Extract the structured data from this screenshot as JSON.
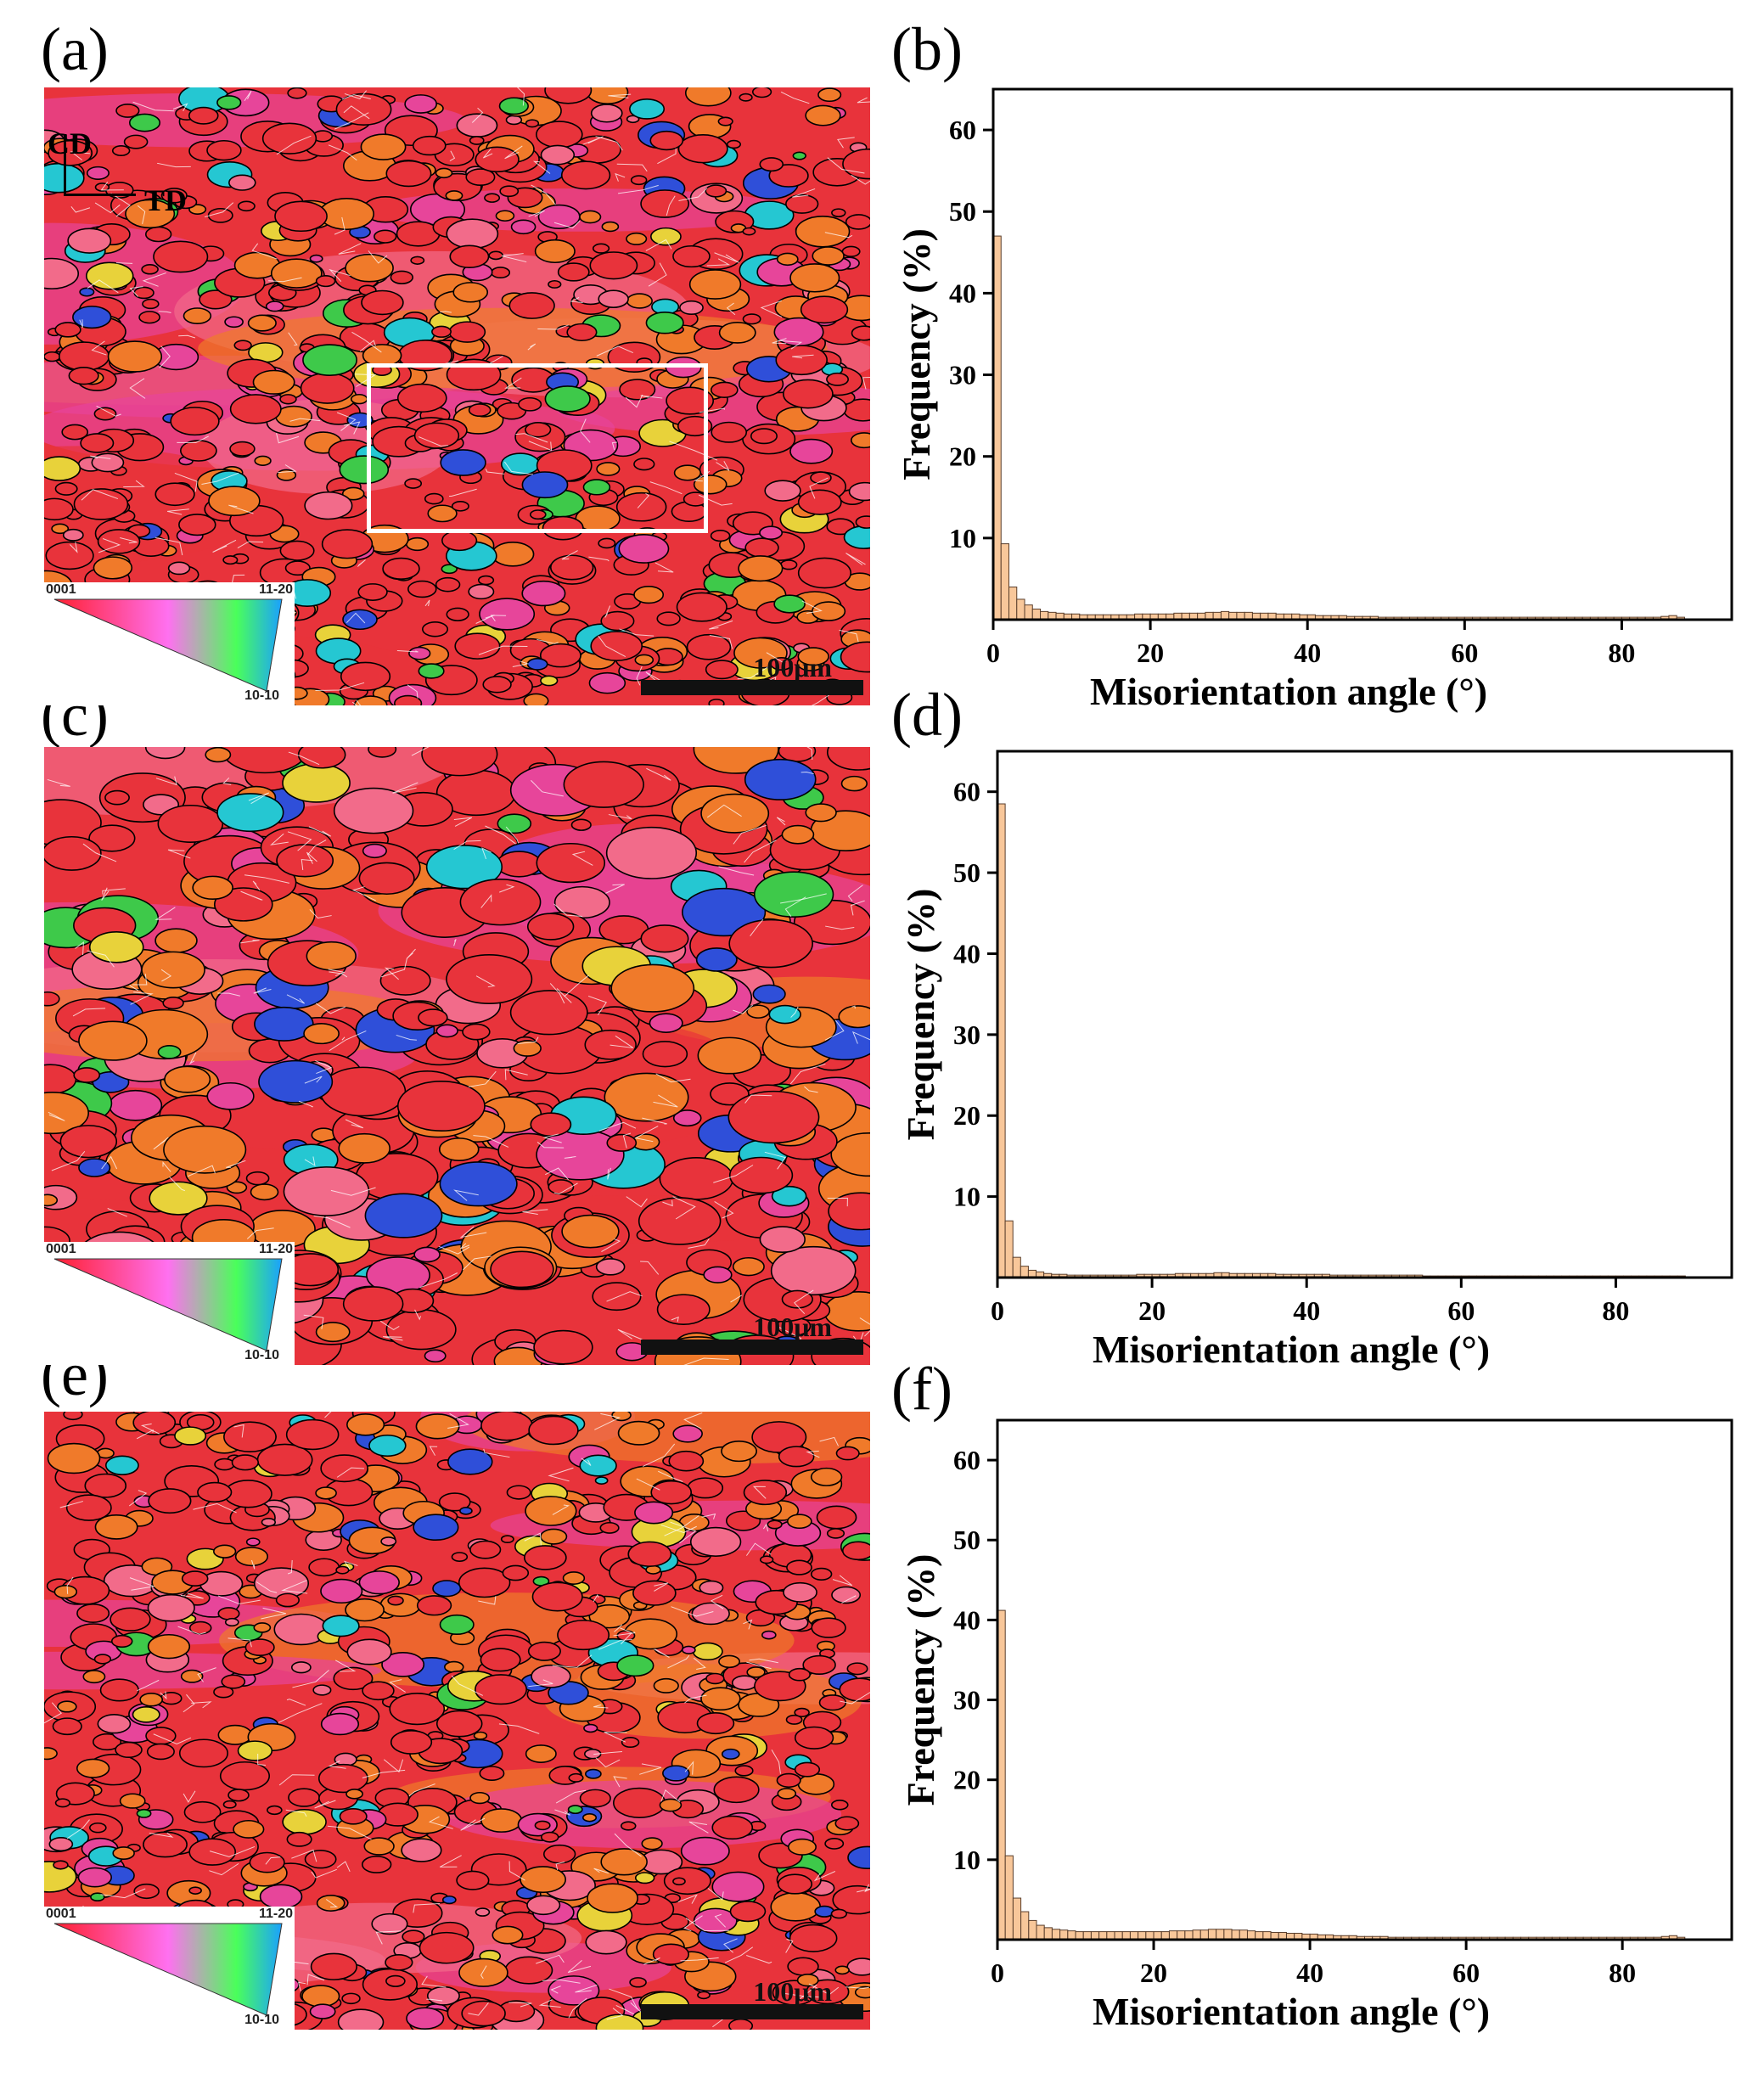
{
  "panels": {
    "a": "(a)",
    "b": "(b)",
    "c": "(c)",
    "d": "(d)",
    "e": "(e)",
    "f": "(f)"
  },
  "maps": {
    "axes": {
      "cd": "CD",
      "td": "TD"
    },
    "legend": {
      "top_left": "0001",
      "top_right": "11-20",
      "bottom_right": "10-10"
    },
    "scale_label": "100μm",
    "colors": {
      "base": "#e8333b",
      "orange": "#f07a2a",
      "magenta": "#e7459a",
      "pink": "#f26b8a",
      "yellow": "#e8d23a",
      "green": "#3ec94a",
      "cyan": "#25c7d2",
      "blue": "#2f4fd9",
      "boundary": "#000000",
      "subboundary": "#ffffff",
      "box": "#ffffff"
    }
  },
  "chart_data": [
    {
      "type": "bar",
      "panel": "(b)",
      "xlabel": "Misorientation  angle (°)",
      "ylabel": "Frequency (%)",
      "xlim": [
        0,
        94
      ],
      "ylim": [
        0,
        65
      ],
      "xticks": [
        0,
        20,
        40,
        60,
        80
      ],
      "yticks": [
        10,
        20,
        30,
        40,
        50,
        60
      ],
      "bin_width": 1,
      "x": [
        1,
        2,
        3,
        4,
        5,
        6,
        7,
        8,
        9,
        10,
        11,
        12,
        13,
        14,
        15,
        16,
        17,
        18,
        19,
        20,
        21,
        22,
        23,
        24,
        25,
        26,
        27,
        28,
        29,
        30,
        31,
        32,
        33,
        34,
        35,
        36,
        37,
        38,
        39,
        40,
        41,
        42,
        43,
        44,
        45,
        46,
        47,
        48,
        49,
        50,
        51,
        52,
        53,
        54,
        55,
        56,
        57,
        58,
        59,
        60,
        61,
        62,
        63,
        64,
        65,
        66,
        67,
        68,
        69,
        70,
        71,
        72,
        73,
        74,
        75,
        76,
        77,
        78,
        79,
        80,
        81,
        82,
        83,
        84,
        85,
        86,
        87,
        88
      ],
      "values": [
        47,
        9.3,
        4,
        2.5,
        1.8,
        1.3,
        1.0,
        0.9,
        0.8,
        0.7,
        0.7,
        0.6,
        0.6,
        0.6,
        0.6,
        0.6,
        0.6,
        0.6,
        0.7,
        0.7,
        0.7,
        0.7,
        0.7,
        0.8,
        0.8,
        0.8,
        0.8,
        0.9,
        0.9,
        1.0,
        0.9,
        0.9,
        0.9,
        0.8,
        0.8,
        0.8,
        0.7,
        0.7,
        0.7,
        0.6,
        0.6,
        0.5,
        0.5,
        0.5,
        0.5,
        0.4,
        0.4,
        0.4,
        0.4,
        0.3,
        0.3,
        0.3,
        0.3,
        0.3,
        0.3,
        0.3,
        0.3,
        0.3,
        0.3,
        0.3,
        0.3,
        0.3,
        0.3,
        0.3,
        0.3,
        0.3,
        0.3,
        0.3,
        0.3,
        0.3,
        0.3,
        0.3,
        0.3,
        0.3,
        0.3,
        0.3,
        0.3,
        0.3,
        0.3,
        0.3,
        0.3,
        0.3,
        0.3,
        0.3,
        0.3,
        0.4,
        0.5,
        0.3
      ],
      "bar_color": "#f8c79a",
      "edge_color": "#5a3e2b"
    },
    {
      "type": "bar",
      "panel": "(d)",
      "xlabel": "Misorientation  angle (°)",
      "ylabel": "Frequency (%)",
      "xlim": [
        0,
        95
      ],
      "ylim": [
        0,
        65
      ],
      "xticks": [
        0,
        20,
        40,
        60,
        80
      ],
      "yticks": [
        10,
        20,
        30,
        40,
        50,
        60
      ],
      "bin_width": 1,
      "x": [
        1,
        2,
        3,
        4,
        5,
        6,
        7,
        8,
        9,
        10,
        11,
        12,
        13,
        14,
        15,
        16,
        17,
        18,
        19,
        20,
        21,
        22,
        23,
        24,
        25,
        26,
        27,
        28,
        29,
        30,
        31,
        32,
        33,
        34,
        35,
        36,
        37,
        38,
        39,
        40,
        41,
        42,
        43,
        44,
        45,
        46,
        47,
        48,
        49,
        50,
        51,
        52,
        53,
        54,
        55,
        56,
        57,
        58,
        59,
        60,
        61,
        62,
        63,
        64,
        65,
        66,
        67,
        68,
        69,
        70,
        71,
        72,
        73,
        74,
        75,
        76,
        77,
        78,
        79,
        80,
        81,
        82,
        83,
        84,
        85,
        86,
        87,
        88,
        89
      ],
      "values": [
        58.5,
        7,
        2.5,
        1.4,
        0.9,
        0.7,
        0.5,
        0.4,
        0.4,
        0.3,
        0.3,
        0.3,
        0.3,
        0.3,
        0.3,
        0.3,
        0.3,
        0.3,
        0.4,
        0.4,
        0.4,
        0.4,
        0.4,
        0.5,
        0.5,
        0.5,
        0.5,
        0.5,
        0.6,
        0.6,
        0.5,
        0.5,
        0.5,
        0.5,
        0.5,
        0.5,
        0.4,
        0.4,
        0.4,
        0.4,
        0.4,
        0.4,
        0.4,
        0.3,
        0.3,
        0.3,
        0.3,
        0.3,
        0.3,
        0.3,
        0.3,
        0.3,
        0.3,
        0.3,
        0.3,
        0.2,
        0.2,
        0.2,
        0.2,
        0.2,
        0.2,
        0.2,
        0.2,
        0.2,
        0.2,
        0.2,
        0.2,
        0.2,
        0.2,
        0.2,
        0.2,
        0.2,
        0.2,
        0.2,
        0.2,
        0.2,
        0.2,
        0.2,
        0.2,
        0.2,
        0.2,
        0.2,
        0.2,
        0.2,
        0.2,
        0.2,
        0.2,
        0.2,
        0.2
      ],
      "bar_color": "#f8c79a",
      "edge_color": "#5a3e2b"
    },
    {
      "type": "bar",
      "panel": "(f)",
      "xlabel": "Misorientation  angle (°)",
      "ylabel": "Frequency (%)",
      "xlim": [
        0,
        94
      ],
      "ylim": [
        0,
        65
      ],
      "xticks": [
        0,
        20,
        40,
        60,
        80
      ],
      "yticks": [
        10,
        20,
        30,
        40,
        50,
        60
      ],
      "bin_width": 1,
      "x": [
        1,
        2,
        3,
        4,
        5,
        6,
        7,
        8,
        9,
        10,
        11,
        12,
        13,
        14,
        15,
        16,
        17,
        18,
        19,
        20,
        21,
        22,
        23,
        24,
        25,
        26,
        27,
        28,
        29,
        30,
        31,
        32,
        33,
        34,
        35,
        36,
        37,
        38,
        39,
        40,
        41,
        42,
        43,
        44,
        45,
        46,
        47,
        48,
        49,
        50,
        51,
        52,
        53,
        54,
        55,
        56,
        57,
        58,
        59,
        60,
        61,
        62,
        63,
        64,
        65,
        66,
        67,
        68,
        69,
        70,
        71,
        72,
        73,
        74,
        75,
        76,
        77,
        78,
        79,
        80,
        81,
        82,
        83,
        84,
        85,
        86,
        87,
        88
      ],
      "values": [
        41.2,
        10.5,
        5.2,
        3.5,
        2.4,
        1.8,
        1.5,
        1.3,
        1.2,
        1.1,
        1.0,
        1.0,
        1.0,
        1.0,
        1.0,
        1.0,
        1.0,
        1.0,
        1.0,
        1.0,
        1.0,
        1.0,
        1.1,
        1.1,
        1.1,
        1.2,
        1.2,
        1.3,
        1.3,
        1.3,
        1.2,
        1.2,
        1.1,
        1.0,
        1.0,
        0.9,
        0.9,
        0.8,
        0.8,
        0.7,
        0.7,
        0.6,
        0.6,
        0.5,
        0.5,
        0.5,
        0.4,
        0.4,
        0.4,
        0.4,
        0.3,
        0.3,
        0.3,
        0.3,
        0.3,
        0.3,
        0.3,
        0.3,
        0.3,
        0.3,
        0.3,
        0.3,
        0.3,
        0.3,
        0.3,
        0.3,
        0.3,
        0.3,
        0.3,
        0.3,
        0.3,
        0.3,
        0.3,
        0.3,
        0.3,
        0.3,
        0.3,
        0.3,
        0.3,
        0.3,
        0.3,
        0.3,
        0.3,
        0.3,
        0.3,
        0.4,
        0.5,
        0.3
      ],
      "bar_color": "#f8c79a",
      "edge_color": "#5a3e2b"
    }
  ]
}
